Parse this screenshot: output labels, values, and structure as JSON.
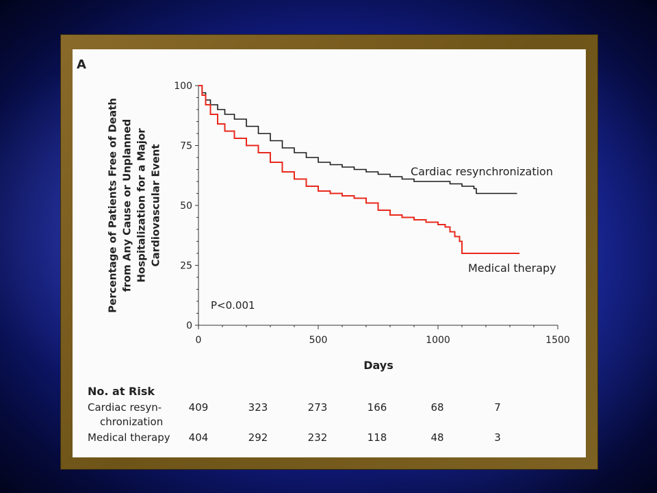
{
  "panel_label": "A",
  "chart_data": {
    "type": "line",
    "title": "",
    "xlabel": "Days",
    "ylabel_lines": [
      "Percentage of Patients Free of Death",
      "from Any Cause or Unplanned",
      "Hospitalization for a Major",
      "Cardiovascular Event"
    ],
    "xlim": [
      0,
      1500
    ],
    "ylim": [
      0,
      100
    ],
    "x_ticks": [
      0,
      500,
      1000,
      1500
    ],
    "y_ticks": [
      0,
      25,
      50,
      75,
      100
    ],
    "grid": false,
    "annotation": "P<0.001",
    "series": [
      {
        "name": "Cardiac resynchronization",
        "color": "#1a1a1a",
        "step": true,
        "x": [
          0,
          15,
          30,
          50,
          80,
          110,
          150,
          200,
          250,
          300,
          350,
          400,
          450,
          500,
          550,
          600,
          650,
          700,
          750,
          800,
          850,
          900,
          950,
          1000,
          1050,
          1100,
          1150,
          1160,
          1250,
          1330
        ],
        "y": [
          100,
          97,
          94,
          92,
          90,
          88,
          86,
          83,
          80,
          77,
          74,
          72,
          70,
          68,
          67,
          66,
          65,
          64,
          63,
          62,
          61,
          60,
          60,
          60,
          59,
          58,
          57,
          55,
          55,
          55
        ]
      },
      {
        "name": "Medical therapy",
        "color": "#e8281c",
        "step": true,
        "x": [
          0,
          15,
          30,
          50,
          80,
          110,
          150,
          200,
          250,
          300,
          350,
          400,
          450,
          500,
          550,
          600,
          650,
          700,
          750,
          800,
          850,
          900,
          950,
          1000,
          1030,
          1050,
          1070,
          1090,
          1100,
          1200,
          1340
        ],
        "y": [
          100,
          96,
          92,
          88,
          84,
          81,
          78,
          75,
          72,
          68,
          64,
          61,
          58,
          56,
          55,
          54,
          53,
          51,
          48,
          46,
          45,
          44,
          43,
          42,
          41,
          39,
          37,
          35,
          30,
          30,
          30
        ]
      }
    ],
    "series_labels": [
      {
        "text": "Cardiac resynchronization",
        "color": "#1a1a1a"
      },
      {
        "text": "Medical therapy",
        "color": "#1a1a1a"
      }
    ]
  },
  "risk_table": {
    "title": "No. at Risk",
    "rows": [
      {
        "label_lines": [
          "Cardiac resyn-",
          "chronization"
        ],
        "values": [
          "409",
          "323",
          "273",
          "166",
          "68",
          "7"
        ]
      },
      {
        "label_lines": [
          "Medical therapy"
        ],
        "values": [
          "404",
          "292",
          "232",
          "118",
          "48",
          "3"
        ]
      }
    ]
  }
}
